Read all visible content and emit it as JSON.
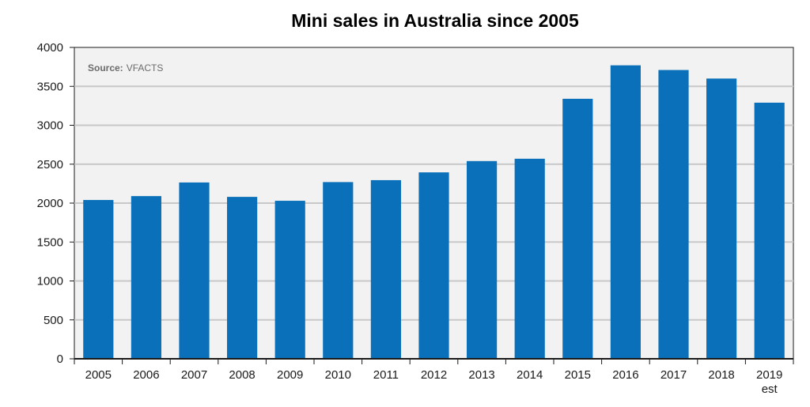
{
  "chart_data": {
    "type": "bar",
    "title": "Mini sales in Australia since 2005",
    "source_label": "Source:",
    "source_value": "VFACTS",
    "categories": [
      "2005",
      "2006",
      "2007",
      "2008",
      "2009",
      "2010",
      "2011",
      "2012",
      "2013",
      "2014",
      "2015",
      "2016",
      "2017",
      "2018",
      "2019"
    ],
    "category_sublabels": [
      "",
      "",
      "",
      "",
      "",
      "",
      "",
      "",
      "",
      "",
      "",
      "",
      "",
      "",
      "est"
    ],
    "values": [
      2040,
      2090,
      2265,
      2080,
      2030,
      2270,
      2295,
      2395,
      2540,
      2570,
      3340,
      3770,
      3710,
      3600,
      3290
    ],
    "yticks": [
      "0",
      "500",
      "1000",
      "1500",
      "2000",
      "2500",
      "3000",
      "3500",
      "4000"
    ],
    "ylim": [
      0,
      4000
    ],
    "xlabel": "",
    "ylabel": "",
    "grid": true,
    "colors": {
      "bar": "#0a70b9",
      "plot_bg": "#f2f2f2",
      "grid": "#c8c8c8",
      "axis": "#1a1a1a"
    }
  }
}
